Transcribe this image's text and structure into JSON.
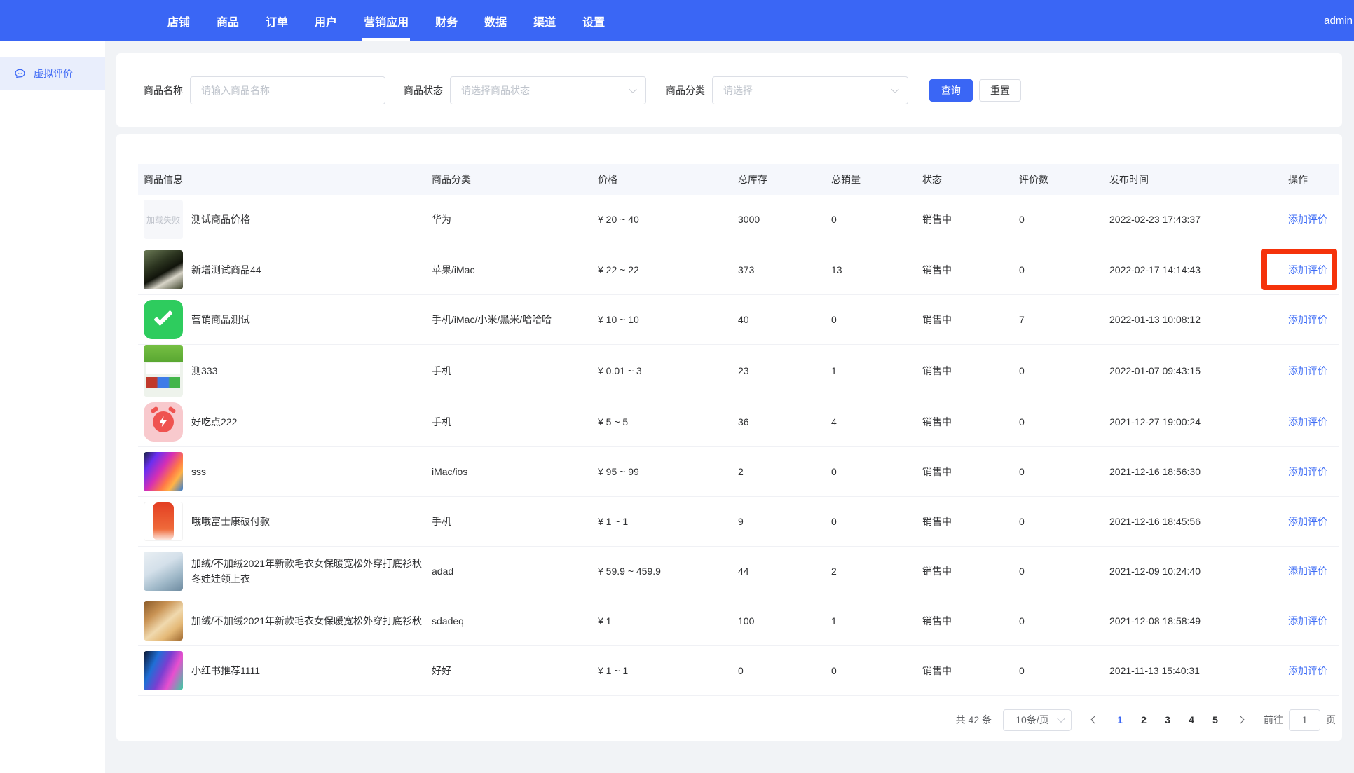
{
  "colors": {
    "accent": "#3a66f5",
    "highlight_red": "#f5320a",
    "header_bg": "#f5f7fc"
  },
  "navbar": {
    "items": [
      {
        "label": "店铺"
      },
      {
        "label": "商品"
      },
      {
        "label": "订单"
      },
      {
        "label": "用户"
      },
      {
        "label": "营销应用"
      },
      {
        "label": "财务"
      },
      {
        "label": "数据"
      },
      {
        "label": "渠道"
      },
      {
        "label": "设置"
      }
    ],
    "active_index": 4,
    "user": "admin"
  },
  "sidebar": {
    "items": [
      {
        "label": "虚拟评价",
        "icon": "comment-icon",
        "active": true
      }
    ]
  },
  "filters": {
    "name_label": "商品名称",
    "name_placeholder": "请输入商品名称",
    "status_label": "商品状态",
    "status_placeholder": "请选择商品状态",
    "category_label": "商品分类",
    "category_placeholder": "请选择",
    "search_label": "查询",
    "reset_label": "重置"
  },
  "table": {
    "columns": [
      "商品信息",
      "商品分类",
      "价格",
      "总库存",
      "总销量",
      "状态",
      "评价数",
      "发布时间",
      "操作"
    ],
    "action_label": "添加评价",
    "rows": [
      {
        "name": "测试商品价格",
        "thumb": "load-failed",
        "thumb_text": "加载失败",
        "category": "华为",
        "price": "¥ 20 ~ 40",
        "stock": "3000",
        "sales": "0",
        "status": "销售中",
        "reviews": "0",
        "published": "2022-02-23 17:43:37",
        "highlighted": false
      },
      {
        "name": "新增测试商品44",
        "thumb": "panda-photo",
        "thumb_text": "",
        "category": "苹果/iMac",
        "price": "¥ 22 ~ 22",
        "stock": "373",
        "sales": "13",
        "status": "销售中",
        "reviews": "0",
        "published": "2022-02-17 14:14:43",
        "highlighted": true
      },
      {
        "name": "营销商品测试",
        "thumb": "green-check",
        "thumb_text": "",
        "category": "手机/iMac/小米/黑米/哈哈哈",
        "price": "¥ 10 ~ 10",
        "stock": "40",
        "sales": "0",
        "status": "销售中",
        "reviews": "7",
        "published": "2022-01-13 10:08:12",
        "highlighted": false
      },
      {
        "name": "测333",
        "thumb": "shop-page",
        "thumb_text": "",
        "category": "手机",
        "price": "¥ 0.01 ~ 3",
        "stock": "23",
        "sales": "1",
        "status": "销售中",
        "reviews": "0",
        "published": "2022-01-07 09:43:15",
        "highlighted": false
      },
      {
        "name": "好吃点222",
        "thumb": "alarm-clock",
        "thumb_text": "",
        "category": "手机",
        "price": "¥ 5 ~ 5",
        "stock": "36",
        "sales": "4",
        "status": "销售中",
        "reviews": "0",
        "published": "2021-12-27 19:00:24",
        "highlighted": false
      },
      {
        "name": "sss",
        "thumb": "colorful-wallpaper",
        "thumb_text": "",
        "category": "iMac/ios",
        "price": "¥ 95 ~ 99",
        "stock": "2",
        "sales": "0",
        "status": "销售中",
        "reviews": "0",
        "published": "2021-12-16 18:56:30",
        "highlighted": false
      },
      {
        "name": "哦哦富士康破付款",
        "thumb": "red-ribbon",
        "thumb_text": "",
        "category": "手机",
        "price": "¥ 1 ~ 1",
        "stock": "9",
        "sales": "0",
        "status": "销售中",
        "reviews": "0",
        "published": "2021-12-16 18:45:56",
        "highlighted": false
      },
      {
        "name": "加绒/不加绒2021年新款毛衣女保暖宽松外穿打底衫秋冬娃娃领上衣",
        "thumb": "sweater-photo",
        "thumb_text": "",
        "category": "adad",
        "price": "¥ 59.9 ~ 459.9",
        "stock": "44",
        "sales": "2",
        "status": "销售中",
        "reviews": "0",
        "published": "2021-12-09 10:24:40",
        "highlighted": false
      },
      {
        "name": "加绒/不加绒2021年新款毛衣女保暖宽松外穿打底衫秋",
        "thumb": "cat-photo",
        "thumb_text": "",
        "category": "sdadeq",
        "price": "¥ 1",
        "stock": "100",
        "sales": "1",
        "status": "销售中",
        "reviews": "0",
        "published": "2021-12-08 18:58:49",
        "highlighted": false
      },
      {
        "name": "小红书推荐1111",
        "thumb": "colorful-wallpaper-2",
        "thumb_text": "",
        "category": "好好",
        "price": "¥ 1 ~ 1",
        "stock": "0",
        "sales": "0",
        "status": "销售中",
        "reviews": "0",
        "published": "2021-11-13 15:40:31",
        "highlighted": false
      }
    ]
  },
  "pagination": {
    "total_text": "共 42 条",
    "page_size": "10条/页",
    "pages": [
      "1",
      "2",
      "3",
      "4",
      "5"
    ],
    "active_page": "1",
    "goto_label": "前往",
    "goto_value": "1",
    "goto_suffix": "页"
  }
}
